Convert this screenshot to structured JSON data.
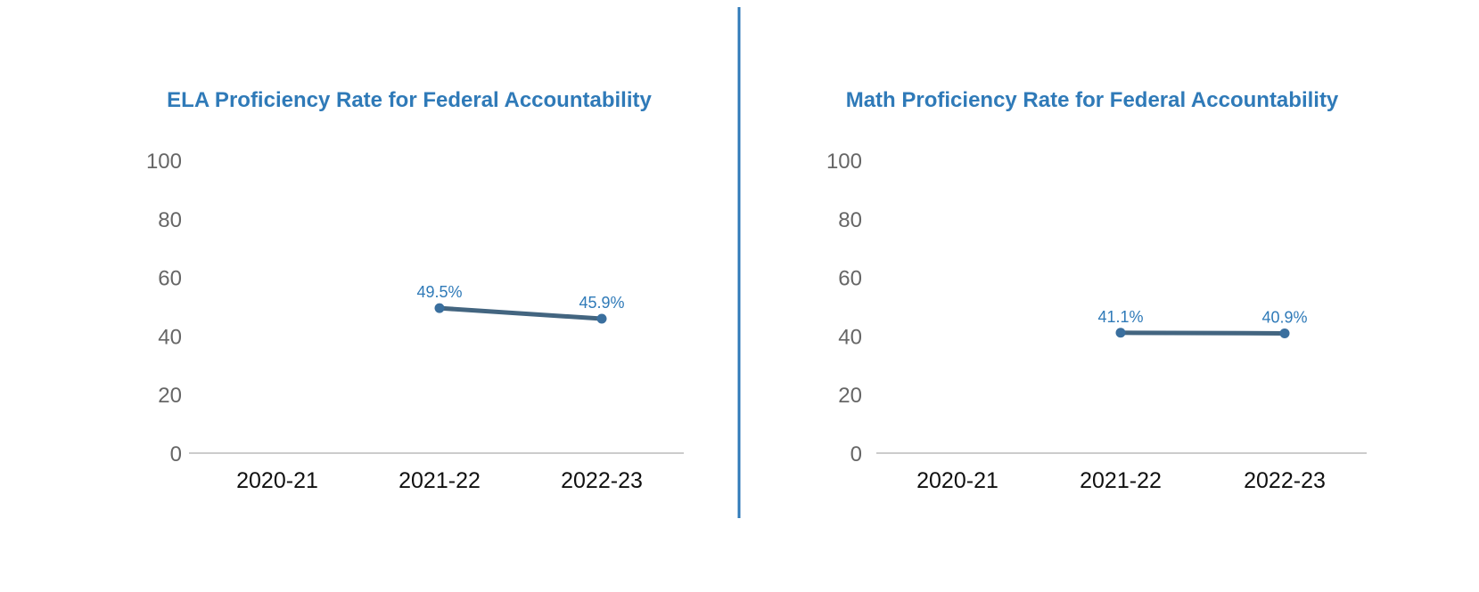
{
  "colors": {
    "title": "#2f7ab8",
    "line": "#436580",
    "marker": "#3a6f9e",
    "label": "#2f7ab8",
    "divider": "#2f7ab8",
    "axis": "#bbbbbb"
  },
  "chart_data": [
    {
      "type": "line",
      "title": "ELA Proficiency Rate for Federal Accountability",
      "categories": [
        "2020-21",
        "2021-22",
        "2022-23"
      ],
      "series": [
        {
          "values": [
            null,
            49.5,
            45.9
          ],
          "labels": [
            "",
            "49.5%",
            "45.9%"
          ]
        }
      ],
      "ylim": [
        0,
        100
      ],
      "yticks": [
        "0",
        "20",
        "40",
        "60",
        "80",
        "100"
      ],
      "grid": false,
      "legend": "none"
    },
    {
      "type": "line",
      "title": "Math Proficiency Rate for Federal Accountability",
      "categories": [
        "2020-21",
        "2021-22",
        "2022-23"
      ],
      "series": [
        {
          "values": [
            null,
            41.1,
            40.9
          ],
          "labels": [
            "",
            "41.1%",
            "40.9%"
          ]
        }
      ],
      "ylim": [
        0,
        100
      ],
      "yticks": [
        "0",
        "20",
        "40",
        "60",
        "80",
        "100"
      ],
      "grid": false,
      "legend": "none"
    }
  ]
}
